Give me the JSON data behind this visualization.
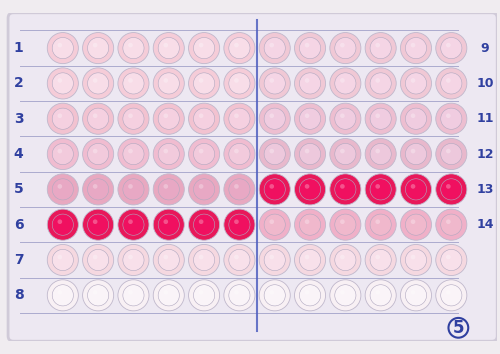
{
  "figure_number": "5",
  "background_color": "#f0ecf0",
  "plate_border": "#d0cad8",
  "n_rows": 8,
  "n_cols": 12,
  "row_labels_left": [
    "1",
    "2",
    "3",
    "4",
    "5",
    "6",
    "7",
    "8"
  ],
  "row_labels_right": [
    "9",
    "10",
    "11",
    "12",
    "13",
    "14",
    "",
    ""
  ],
  "divider_col": 6,
  "well_colors": [
    [
      "#f5ccd8",
      "#f5ccd8",
      "#f5ccd8",
      "#f5ccd8",
      "#f5ccd8",
      "#f5ccd8",
      "#f0c8d5",
      "#f0c8d5",
      "#f0c8d5",
      "#f0c8d5",
      "#f0c8d5",
      "#f0c8d5"
    ],
    [
      "#f5ccd8",
      "#f5ccd8",
      "#f5ccd8",
      "#f5ccd8",
      "#f5ccd8",
      "#f5ccd8",
      "#f0c8d5",
      "#f0c8d5",
      "#f0c8d5",
      "#f0c8d5",
      "#f0c8d5",
      "#f0c8d5"
    ],
    [
      "#f2c2d0",
      "#f2c2d0",
      "#f2c2d0",
      "#f2c2d0",
      "#f2c2d0",
      "#f2c2d0",
      "#edbed0",
      "#edbed0",
      "#edbed0",
      "#edbed0",
      "#edbed0",
      "#edbed0"
    ],
    [
      "#f0bcd0",
      "#f0bcd0",
      "#f0bcd0",
      "#f0bcd0",
      "#f0bcd0",
      "#f0bcd0",
      "#e8b8cc",
      "#e8b8cc",
      "#e8b8cc",
      "#e8b8cc",
      "#e8b8cc",
      "#e8b8cc"
    ],
    [
      "#e8a8c0",
      "#e8a8c0",
      "#e8a8c0",
      "#e8a8c0",
      "#e8a8c0",
      "#e8a8c0",
      "#e8185a",
      "#e8185a",
      "#e8185a",
      "#e8185a",
      "#e8185a",
      "#e8185a"
    ],
    [
      "#e8185a",
      "#e8185a",
      "#e8185a",
      "#e8185a",
      "#e8185a",
      "#e8185a",
      "#f0b0c8",
      "#f0b0c8",
      "#f0b0c8",
      "#f0b0c8",
      "#f0b0c8",
      "#f0b0c8"
    ],
    [
      "#f5d8e0",
      "#f5d8e0",
      "#f5d8e0",
      "#f5d8e0",
      "#f5d8e0",
      "#f5d8e0",
      "#f5d8e0",
      "#f5d8e0",
      "#f5d8e0",
      "#f5d8e0",
      "#f5d8e0",
      "#f5d8e0"
    ],
    [
      "#f8f0f4",
      "#f8f0f4",
      "#f8f0f4",
      "#f8f0f4",
      "#f8f0f4",
      "#f8f0f4",
      "#f8f0f4",
      "#f8f0f4",
      "#f8f0f4",
      "#f8f0f4",
      "#f8f0f4",
      "#f8f0f4"
    ]
  ],
  "well_inner_colors": [
    [
      "#f8dde8",
      "#f8dde8",
      "#f8dde8",
      "#f8dde8",
      "#f8dde8",
      "#f8dde8",
      "#f5d5e5",
      "#f5d5e5",
      "#f5d5e5",
      "#f5d5e5",
      "#f5d5e5",
      "#f5d5e5"
    ],
    [
      "#f8dde8",
      "#f8dde8",
      "#f8dde8",
      "#f8dde8",
      "#f8dde8",
      "#f8dde8",
      "#f5d5e5",
      "#f5d5e5",
      "#f5d5e5",
      "#f5d5e5",
      "#f5d5e5",
      "#f5d5e5"
    ],
    [
      "#f5d0e0",
      "#f5d0e0",
      "#f5d0e0",
      "#f5d0e0",
      "#f5d0e0",
      "#f5d0e0",
      "#f0cce0",
      "#f0cce0",
      "#f0cce0",
      "#f0cce0",
      "#f0cce0",
      "#f0cce0"
    ],
    [
      "#f2cadc",
      "#f2cadc",
      "#f2cadc",
      "#f2cadc",
      "#f2cadc",
      "#f2cadc",
      "#edc8dc",
      "#edc8dc",
      "#edc8dc",
      "#edc8dc",
      "#edc8dc",
      "#edc8dc"
    ],
    [
      "#e8a8c4",
      "#e8a8c4",
      "#e8a8c4",
      "#e8a8c4",
      "#e8a8c4",
      "#e8a8c4",
      "#f01060",
      "#f01060",
      "#f01060",
      "#f01060",
      "#f01060",
      "#f01060"
    ],
    [
      "#f01060",
      "#f01060",
      "#f01060",
      "#f01060",
      "#f01060",
      "#f01060",
      "#f0b8cc",
      "#f0b8cc",
      "#f0b8cc",
      "#f0b8cc",
      "#f0b8cc",
      "#f0b8cc"
    ],
    [
      "#f8e0ea",
      "#f8e0ea",
      "#f8e0ea",
      "#f8e0ea",
      "#f8e0ea",
      "#f8e0ea",
      "#f8e0ea",
      "#f8e0ea",
      "#f8e0ea",
      "#f8e0ea",
      "#f8e0ea",
      "#f8e0ea"
    ],
    [
      "#faf4f8",
      "#faf4f8",
      "#faf4f8",
      "#faf4f8",
      "#faf4f8",
      "#faf4f8",
      "#faf4f8",
      "#faf4f8",
      "#faf4f8",
      "#faf4f8",
      "#faf4f8",
      "#faf4f8"
    ]
  ],
  "label_color": "#3040a0",
  "divider_color": "#5060c0",
  "line_color": "#9090c0",
  "figsize": [
    5.0,
    3.54
  ],
  "dpi": 100
}
